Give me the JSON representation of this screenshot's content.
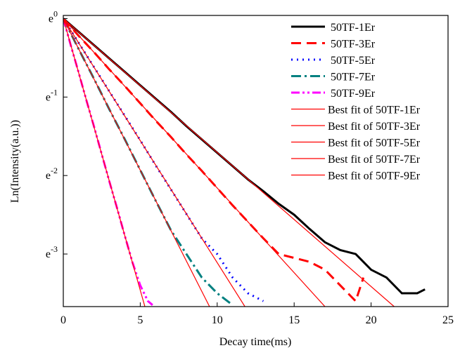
{
  "chart_data": {
    "type": "line",
    "xlabel": "Decay time(ms)",
    "ylabel": "Ln(Intensity(a.u.))",
    "xlim": [
      0,
      25
    ],
    "xticks": [
      0,
      5,
      10,
      15,
      20,
      25
    ],
    "ylim": [
      -3.67,
      0.04
    ],
    "yticks": [
      {
        "value": 0,
        "label": "e0"
      },
      {
        "value": -1,
        "label": "e-1"
      },
      {
        "value": -2,
        "label": "e-2"
      },
      {
        "value": -3,
        "label": "e-3"
      }
    ],
    "series": [
      {
        "name": "50TF-1Er",
        "color": "#000000",
        "dash": "solid",
        "width": 3,
        "x": [
          0,
          1,
          2,
          3,
          4,
          5,
          6,
          7,
          8,
          9,
          10,
          11,
          12,
          13,
          14,
          15,
          16,
          17,
          18,
          19,
          20,
          21,
          22,
          23,
          23.5
        ],
        "values": [
          0,
          -0.17,
          -0.34,
          -0.51,
          -0.68,
          -0.85,
          -1.02,
          -1.19,
          -1.37,
          -1.54,
          -1.71,
          -1.88,
          -2.05,
          -2.2,
          -2.36,
          -2.5,
          -2.68,
          -2.85,
          -2.95,
          -3.0,
          -3.2,
          -3.3,
          -3.5,
          -3.5,
          -3.45
        ]
      },
      {
        "name": "50TF-3Er",
        "color": "#ff0000",
        "dash": "dash",
        "width": 3,
        "x": [
          0,
          1,
          2,
          3,
          4,
          5,
          6,
          7,
          8,
          9,
          10,
          11,
          12,
          13,
          14,
          15,
          16,
          17,
          18,
          19,
          19.5
        ],
        "values": [
          0,
          -0.22,
          -0.43,
          -0.65,
          -0.86,
          -1.08,
          -1.3,
          -1.51,
          -1.73,
          -1.94,
          -2.16,
          -2.38,
          -2.59,
          -2.8,
          -3.0,
          -3.05,
          -3.1,
          -3.2,
          -3.4,
          -3.6,
          -3.3
        ]
      },
      {
        "name": "50TF-5Er",
        "color": "#0000ff",
        "dash": "dot",
        "width": 3,
        "x": [
          0,
          1,
          2,
          3,
          4,
          5,
          6,
          7,
          8,
          9,
          10,
          11,
          12,
          13
        ],
        "values": [
          0,
          -0.31,
          -0.62,
          -0.93,
          -1.24,
          -1.55,
          -1.87,
          -2.18,
          -2.49,
          -2.8,
          -3.0,
          -3.3,
          -3.5,
          -3.6
        ]
      },
      {
        "name": "50TF-7Er",
        "color": "#008080",
        "dash": "dashdot",
        "width": 3,
        "x": [
          0,
          1,
          2,
          3,
          4,
          5,
          6,
          7,
          8,
          9,
          10,
          11
        ],
        "values": [
          0,
          -0.39,
          -0.77,
          -1.16,
          -1.54,
          -1.93,
          -2.32,
          -2.7,
          -3.0,
          -3.3,
          -3.5,
          -3.65
        ]
      },
      {
        "name": "50TF-9Er",
        "color": "#ff00ff",
        "dash": "dashdotdot",
        "width": 3,
        "x": [
          0,
          0.5,
          1,
          1.5,
          2,
          2.5,
          3,
          3.5,
          4,
          4.5,
          5,
          5.5,
          5.8
        ],
        "values": [
          0,
          -0.35,
          -0.69,
          -1.04,
          -1.38,
          -1.73,
          -2.08,
          -2.42,
          -2.77,
          -3.11,
          -3.4,
          -3.6,
          -3.65
        ]
      },
      {
        "name": "Best fit of 50TF-1Er",
        "color": "#ff0000",
        "dash": "solid",
        "width": 1.2,
        "x": [
          0,
          21.5
        ],
        "values": [
          0,
          -3.67
        ]
      },
      {
        "name": "Best fit of 50TF-3Er",
        "color": "#ff0000",
        "dash": "solid",
        "width": 1.2,
        "x": [
          0,
          17.0
        ],
        "values": [
          0,
          -3.67
        ]
      },
      {
        "name": "Best fit of 50TF-5Er",
        "color": "#ff0000",
        "dash": "solid",
        "width": 1.2,
        "x": [
          0,
          11.8
        ],
        "values": [
          0,
          -3.67
        ]
      },
      {
        "name": "Best fit of 50TF-7Er",
        "color": "#ff0000",
        "dash": "solid",
        "width": 1.2,
        "x": [
          0,
          9.5
        ],
        "values": [
          0,
          -3.67
        ]
      },
      {
        "name": "Best fit of 50TF-9Er",
        "color": "#ff0000",
        "dash": "solid",
        "width": 1.2,
        "x": [
          0,
          5.3
        ],
        "values": [
          0,
          -3.67
        ]
      }
    ]
  }
}
